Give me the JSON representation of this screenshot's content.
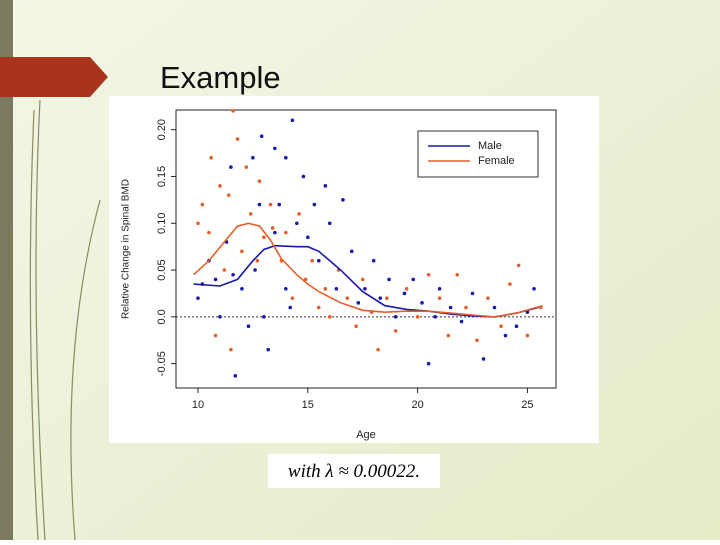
{
  "slide": {
    "title": "Example",
    "caption": "with λ ≈ 0.00022."
  },
  "chart_data": {
    "type": "scatter",
    "x_label": "Age",
    "y_label": "Relative Change in Spinal BMD",
    "xlim": [
      9,
      26.3
    ],
    "ylim": [
      -0.076,
      0.221
    ],
    "xticks": [
      10,
      15,
      20,
      25
    ],
    "yticks": [
      -0.05,
      {
        "value": 0,
        "label": "0.0"
      },
      0.05,
      {
        "value": 0.1,
        "label": "0.10"
      },
      0.15,
      {
        "value": 0.2,
        "label": "0.20"
      }
    ],
    "reference_line": 0,
    "legend": "top-right",
    "series": [
      {
        "name": "Male",
        "color": "#1a1aa8",
        "x": [
          11.7,
          14.3,
          12.9,
          11.5,
          12.5,
          13.5,
          14,
          10,
          10.2,
          10.5,
          10.8,
          11,
          11.3,
          11.6,
          12,
          12.3,
          12.6,
          12.8,
          13,
          13.2,
          13.5,
          13.7,
          14,
          14.2,
          14.5,
          14.8,
          15,
          15.3,
          15.5,
          15.8,
          16,
          16.3,
          16.6,
          17,
          17.3,
          17.6,
          18,
          18.3,
          18.7,
          19,
          19.4,
          19.8,
          20.2,
          20.5,
          20.8,
          21,
          21.5,
          22,
          22.5,
          23,
          23.5,
          24,
          24.5,
          25,
          25.3
        ],
        "values": [
          -0.063,
          0.21,
          0.193,
          0.16,
          0.17,
          0.18,
          0.17,
          0.02,
          0.035,
          0.06,
          0.04,
          0,
          0.08,
          0.045,
          0.03,
          -0.01,
          0.05,
          0.12,
          0,
          -0.035,
          0.09,
          0.12,
          0.03,
          0.01,
          0.1,
          0.15,
          0.085,
          0.12,
          0.06,
          0.14,
          0.1,
          0.03,
          0.125,
          0.07,
          0.015,
          0.03,
          0.06,
          0.02,
          0.04,
          0,
          0.025,
          0.04,
          0.015,
          -0.05,
          0,
          0.03,
          0.01,
          -0.005,
          0.025,
          -0.045,
          0.01,
          -0.02,
          -0.01,
          0.005,
          0.03
        ],
        "fit": {
          "x": [
            9.8,
            11,
            11.8,
            12.5,
            13,
            13.5,
            14.5,
            15,
            15.5,
            16.5,
            17.5,
            18.5,
            19.5,
            20.5,
            21.5,
            22.5,
            23.5,
            24.5,
            25.5
          ],
          "values": [
            0.035,
            0.033,
            0.04,
            0.06,
            0.072,
            0.076,
            0.075,
            0.075,
            0.07,
            0.05,
            0.027,
            0.012,
            0.008,
            0.006,
            0.003,
            0.001,
            0,
            0.004,
            0.01
          ]
        }
      },
      {
        "name": "Female",
        "color": "#e0602a",
        "x": [
          11.6,
          11.8,
          10.6,
          11,
          11.4,
          12.2,
          12.8,
          13.3,
          10.2,
          10,
          10.5,
          10.8,
          11.2,
          11.5,
          12,
          12.4,
          12.7,
          13,
          13.4,
          13.8,
          14,
          14.3,
          14.6,
          14.9,
          15.2,
          15.5,
          15.8,
          16,
          16.4,
          16.8,
          17.2,
          17.5,
          17.9,
          18.2,
          18.6,
          19,
          19.5,
          20,
          20.5,
          21,
          21.4,
          21.8,
          22.2,
          22.7,
          23.2,
          23.8,
          24.2,
          24.6,
          25,
          25.6
        ],
        "values": [
          0.22,
          0.19,
          0.17,
          0.14,
          0.13,
          0.16,
          0.145,
          0.12,
          0.12,
          0.1,
          0.09,
          -0.02,
          0.05,
          -0.035,
          0.07,
          0.11,
          0.06,
          0.085,
          0.095,
          0.06,
          0.09,
          0.02,
          0.11,
          0.04,
          0.06,
          0.01,
          0.03,
          0,
          0.05,
          0.02,
          -0.01,
          0.04,
          0.005,
          -0.035,
          0.02,
          -0.015,
          0.03,
          0,
          0.045,
          0.02,
          -0.02,
          0.045,
          0.01,
          -0.025,
          0.02,
          -0.01,
          0.035,
          0.055,
          -0.02,
          0.01
        ],
        "fit": {
          "x": [
            9.8,
            10.5,
            11.2,
            11.8,
            12.3,
            12.8,
            13.3,
            13.8,
            14.5,
            15,
            15.5,
            16.5,
            17.5,
            18.5,
            19.5,
            20.5,
            21.5,
            22.5,
            23.5,
            24.5,
            25.7
          ],
          "values": [
            0.045,
            0.06,
            0.08,
            0.097,
            0.1,
            0.097,
            0.082,
            0.062,
            0.045,
            0.035,
            0.027,
            0.015,
            0.007,
            0.005,
            0.006,
            0.006,
            0.004,
            0.002,
            0,
            0.004,
            0.012
          ]
        }
      }
    ]
  }
}
